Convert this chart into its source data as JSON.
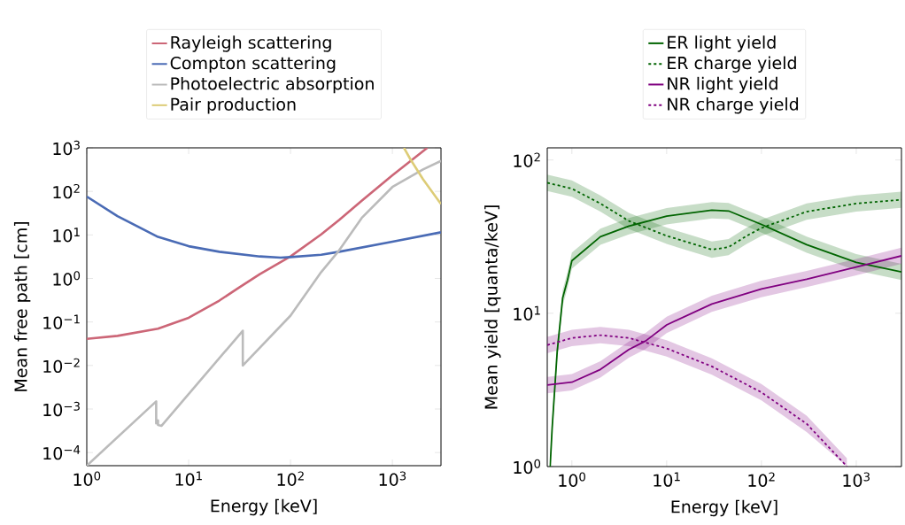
{
  "chart_data": [
    {
      "type": "line",
      "xlabel": "Energy [keV]",
      "ylabel": "Mean free path [cm]",
      "log": "xy",
      "legend": "top",
      "marker": "none",
      "xlim": [
        1,
        3000
      ],
      "ylim": [
        5e-05,
        1000
      ],
      "xticks": [
        {
          "value": 1,
          "label": "10$^{0}$"
        },
        {
          "value": 10,
          "label": "10$^{1}$"
        },
        {
          "value": 100,
          "label": "10$^{2}$"
        },
        {
          "value": 1000,
          "label": "10$^{3}$"
        }
      ],
      "yticks": [
        {
          "value": 0.0001,
          "label": "10$^{−4}$"
        },
        {
          "value": 0.001,
          "label": "10$^{−3}$"
        },
        {
          "value": 0.01,
          "label": "10$^{−2}$"
        },
        {
          "value": 0.1,
          "label": "10$^{−1}$"
        },
        {
          "value": 1,
          "label": "10$^{0}$"
        },
        {
          "value": 10,
          "label": "10$^{1}$"
        },
        {
          "value": 100,
          "label": "10$^{2}$"
        },
        {
          "value": 1000,
          "label": "10$^{3}$"
        }
      ],
      "series": [
        {
          "name": "Rayleigh scattering",
          "color": "#cc6677",
          "x": [
            1,
            2,
            5,
            10,
            20,
            30,
            50,
            100,
            200,
            300,
            500,
            1000,
            2200
          ],
          "values": [
            0.041,
            0.048,
            0.07,
            0.125,
            0.31,
            0.58,
            1.26,
            3.2,
            10.3,
            22,
            61,
            235,
            1000
          ]
        },
        {
          "name": "Compton scattering",
          "color": "#4a6bb5",
          "x": [
            1,
            2,
            5,
            10,
            20,
            50,
            80,
            100,
            200,
            300,
            1000,
            3000
          ],
          "values": [
            76,
            27,
            9,
            5.5,
            4.1,
            3.2,
            3.0,
            3.1,
            3.5,
            4.1,
            7,
            11.5
          ]
        },
        {
          "name": "Photoelectric absorption",
          "color": "#bbbbbb",
          "x": [
            1,
            4.8,
            4.8,
            5.0,
            5.0,
            5.4,
            34,
            34,
            100,
            200,
            300,
            500,
            1000,
            2000,
            3000
          ],
          "values": [
            5e-05,
            0.0015,
            0.00047,
            0.00055,
            0.00043,
            0.00041,
            0.063,
            0.01,
            0.14,
            1.4,
            4.4,
            24.5,
            126,
            320,
            500
          ]
        },
        {
          "name": "Pair production",
          "color": "#ddcc77",
          "x": [
            1300,
            1500,
            2000,
            3000
          ],
          "values": [
            1000,
            550,
            190,
            51
          ]
        }
      ]
    },
    {
      "type": "line",
      "xlabel": "Energy [keV]",
      "ylabel": "Mean yield [quanta/keV]",
      "log": "xy",
      "legend": "top",
      "marker": "none",
      "xlim": [
        0.55,
        3000
      ],
      "ylim": [
        1,
        120
      ],
      "xticks": [
        {
          "value": 1,
          "label": "10$^{0}$"
        },
        {
          "value": 10,
          "label": "10$^{1}$"
        },
        {
          "value": 100,
          "label": "10$^{2}$"
        },
        {
          "value": 1000,
          "label": "10$^{3}$"
        }
      ],
      "yticks": [
        {
          "value": 1,
          "label": "10$^{0}$"
        },
        {
          "value": 10,
          "label": "10$^{1}$"
        },
        {
          "value": 100,
          "label": "10$^{2}$"
        }
      ],
      "series": [
        {
          "name": "ER light yield",
          "color": "#006400",
          "line_style": "solid",
          "x": [
            0.59,
            0.62,
            0.7,
            0.8,
            0.9,
            1,
            2,
            4,
            10,
            30,
            45,
            100,
            300,
            1000,
            3000
          ],
          "values": [
            1.0,
            1.8,
            5.6,
            12.6,
            16.5,
            22,
            31.6,
            37,
            43,
            47,
            46.5,
            38,
            28,
            21.5,
            18.6
          ],
          "lower": [
            1.0,
            1.59,
            4.96,
            11.2,
            14.6,
            19.5,
            28,
            32.7,
            38,
            41.6,
            41.2,
            33.6,
            24.8,
            19,
            16.5
          ],
          "upper": [
            1.13,
            2.03,
            6.33,
            14.2,
            18.6,
            24.9,
            35.7,
            41.8,
            48.6,
            53.1,
            52.5,
            42.9,
            31.6,
            24.3,
            21
          ]
        },
        {
          "name": "ER charge yield",
          "color": "#006400",
          "line_style": "dashed",
          "x": [
            0.55,
            1,
            2,
            4,
            10,
            30,
            45,
            70,
            100,
            300,
            1000,
            3000
          ],
          "values": [
            71,
            65,
            52,
            40,
            32,
            26,
            27,
            32,
            36,
            46,
            52,
            55
          ],
          "lower": [
            62.8,
            57.5,
            46,
            35.4,
            28.3,
            23,
            23.9,
            28.3,
            31.9,
            40.7,
            46,
            48.7
          ],
          "upper": [
            80.2,
            73.5,
            58.8,
            45.2,
            36.2,
            29.4,
            30.5,
            36.2,
            40.7,
            52,
            58.8,
            62.2
          ]
        },
        {
          "name": "NR light yield",
          "color": "#800080",
          "line_style": "solid",
          "x": [
            0.55,
            1,
            2,
            4,
            6,
            10,
            30,
            100,
            300,
            1000,
            3000
          ],
          "values": [
            3.4,
            3.55,
            4.3,
            5.8,
            6.6,
            8.4,
            11.5,
            14.4,
            16.7,
            20,
            23.7
          ],
          "lower": [
            3.01,
            3.14,
            3.81,
            5.13,
            5.84,
            7.43,
            10.2,
            12.7,
            14.8,
            17.7,
            21
          ],
          "upper": [
            3.84,
            4.01,
            4.86,
            6.55,
            7.46,
            9.49,
            13,
            16.3,
            18.9,
            22.6,
            26.8
          ]
        },
        {
          "name": "NR charge yield",
          "color": "#800080",
          "line_style": "dashed",
          "x": [
            0.55,
            1,
            2,
            4,
            10,
            30,
            100,
            300,
            800
          ],
          "values": [
            6.2,
            6.9,
            7.2,
            6.9,
            5.9,
            4.5,
            3.05,
            1.9,
            1.0
          ],
          "lower": [
            5.49,
            6.11,
            6.37,
            6.11,
            5.22,
            3.98,
            2.7,
            1.68,
            1.0
          ],
          "upper": [
            7.01,
            7.8,
            8.14,
            7.8,
            6.67,
            5.09,
            3.45,
            2.15,
            1.13
          ]
        }
      ]
    }
  ]
}
